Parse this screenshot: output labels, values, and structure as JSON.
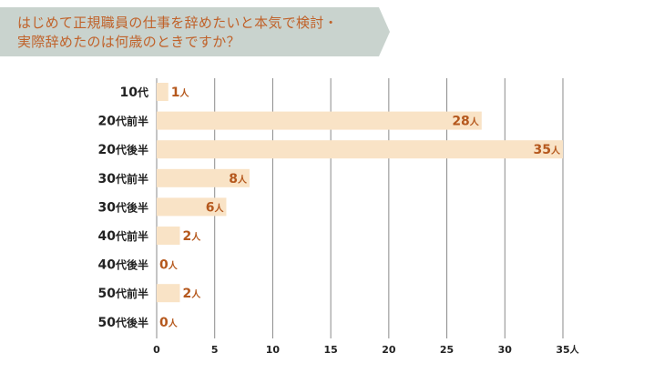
{
  "title": {
    "line1": "はじめて正規職員の仕事を辞めたいと本気で検討・",
    "line2": "実際辞めたのは何歳のときですか？"
  },
  "colors": {
    "banner": "#c9d3ce",
    "bar": "#f9e3c6",
    "grid": "#8a8a8a",
    "value_text": "#b5581d",
    "title_text": "#c0622a"
  },
  "chart_data": {
    "type": "bar",
    "orientation": "horizontal",
    "title": "はじめて正規職員の仕事を辞めたいと本気で検討・実際辞めたのは何歳のときですか？",
    "categories": [
      "10代",
      "20代前半",
      "20代後半",
      "30代前半",
      "30代後半",
      "40代前半",
      "40代後半",
      "50代前半",
      "50代後半"
    ],
    "category_parts": [
      {
        "num": "10",
        "suffix": "代"
      },
      {
        "num": "20",
        "suffix": "代前半"
      },
      {
        "num": "20",
        "suffix": "代後半"
      },
      {
        "num": "30",
        "suffix": "代前半"
      },
      {
        "num": "30",
        "suffix": "代後半"
      },
      {
        "num": "40",
        "suffix": "代前半"
      },
      {
        "num": "40",
        "suffix": "代後半"
      },
      {
        "num": "50",
        "suffix": "代前半"
      },
      {
        "num": "50",
        "suffix": "代後半"
      }
    ],
    "values": [
      1,
      28,
      35,
      8,
      6,
      2,
      0,
      2,
      0
    ],
    "value_unit": "人",
    "xlim": [
      0,
      35
    ],
    "xticks": [
      0,
      5,
      10,
      15,
      20,
      25,
      30,
      35
    ],
    "x_unit": "人",
    "grid": true
  }
}
